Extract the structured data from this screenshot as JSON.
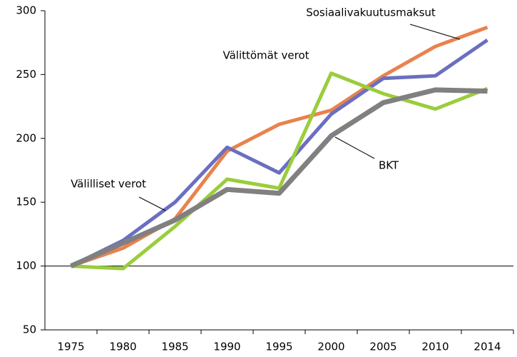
{
  "chart_data": {
    "type": "line",
    "categories": [
      "1975",
      "1980",
      "1985",
      "1990",
      "1995",
      "2000",
      "2005",
      "2010",
      "2014"
    ],
    "series": [
      {
        "name": "Sosiaalivakuutusmaksut",
        "color": "#e8834e",
        "values": [
          100,
          114,
          137,
          190,
          211,
          222,
          249,
          272,
          287
        ]
      },
      {
        "name": "Välilliset verot",
        "color": "#6a6fc0",
        "values": [
          100,
          120,
          150,
          193,
          173,
          219,
          247,
          249,
          277
        ]
      },
      {
        "name": "Välittömät verot",
        "color": "#9acd3c",
        "values": [
          100,
          98,
          131,
          168,
          161,
          251,
          235,
          223,
          239
        ]
      },
      {
        "name": "BKT",
        "color": "#808080",
        "values": [
          100,
          118,
          136,
          160,
          157,
          202,
          228,
          238,
          237
        ]
      }
    ],
    "ylim": [
      50,
      300
    ],
    "yticks": [
      50,
      100,
      150,
      200,
      250,
      300
    ],
    "baseline": 100,
    "grid": false
  }
}
